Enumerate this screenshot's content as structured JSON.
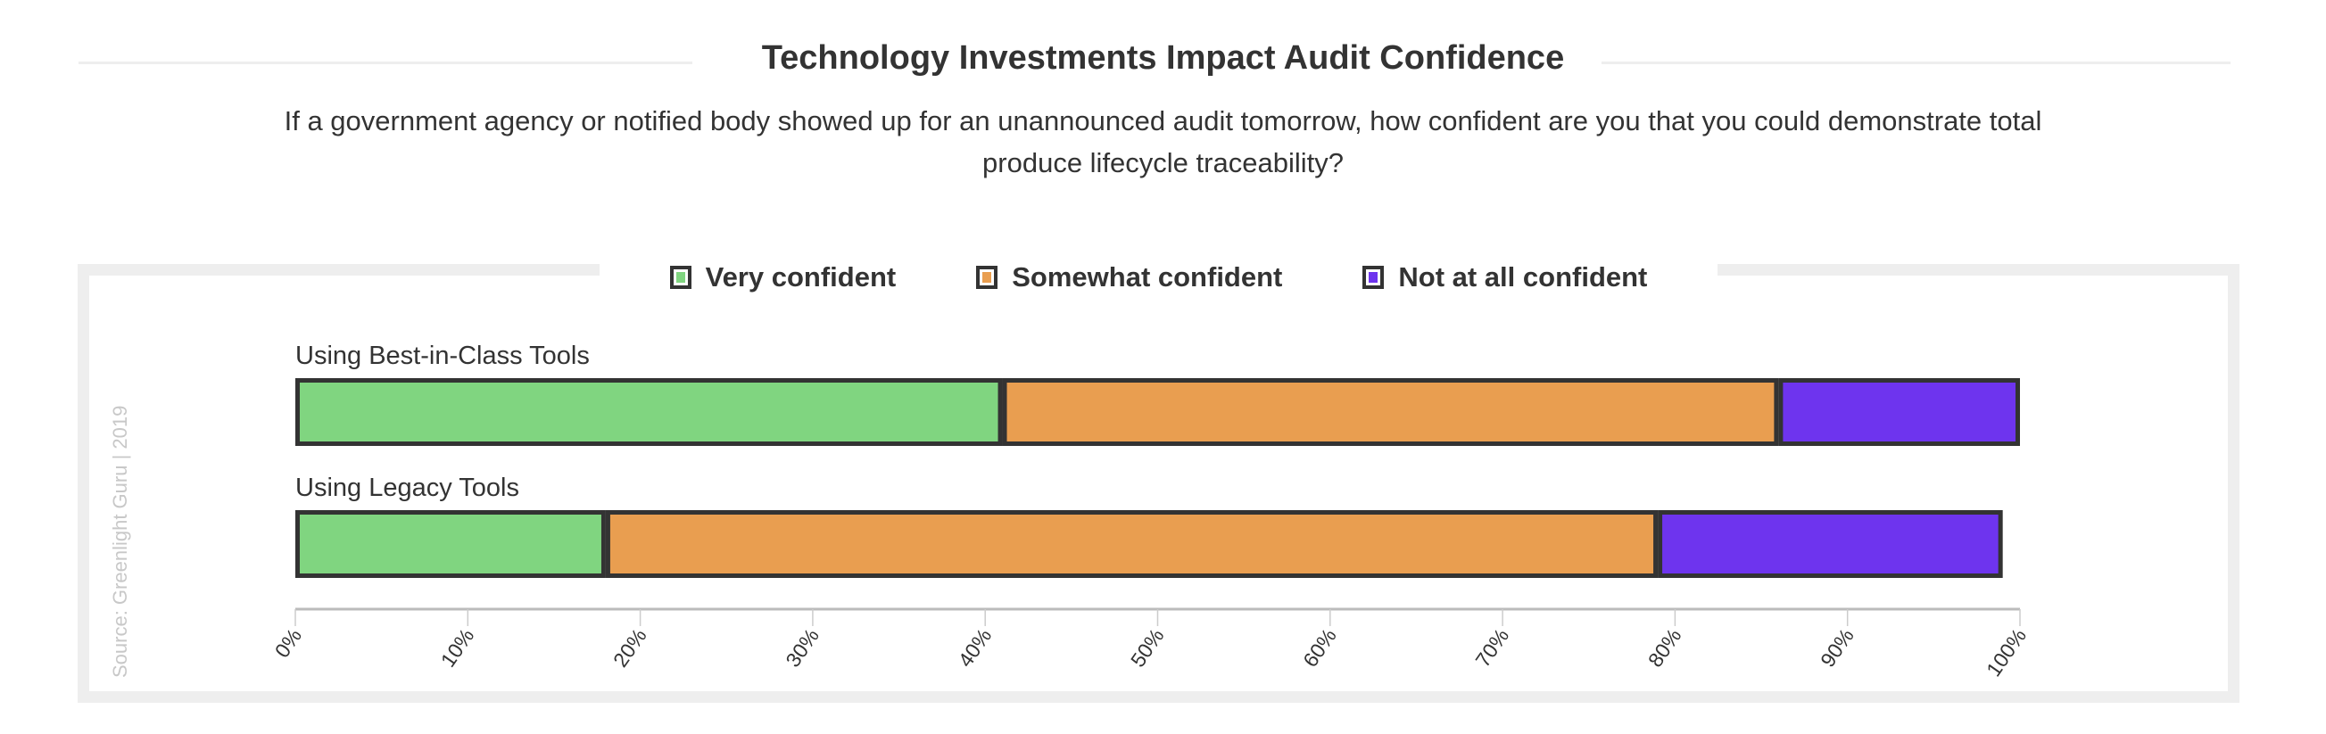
{
  "chart_data": {
    "type": "bar",
    "orientation": "horizontal",
    "stacked": true,
    "title": "Technology Investments Impact Audit Confidence",
    "subtitle": "If a government agency or notified body showed up for an unannounced audit tomorrow, how confident are you that you could demonstrate total produce lifecycle traceability?",
    "categories": [
      "Using Best-in-Class Tools",
      "Using Legacy Tools"
    ],
    "series": [
      {
        "name": "Very confident",
        "color": "#80d580",
        "values": [
          41,
          18
        ]
      },
      {
        "name": "Somewhat confident",
        "color": "#e99e50",
        "values": [
          45,
          61
        ]
      },
      {
        "name": "Not at all confident",
        "color": "#6e34ee",
        "values": [
          14,
          20
        ]
      }
    ],
    "xlim": [
      0,
      100
    ],
    "xticks": [
      "0%",
      "10%",
      "20%",
      "30%",
      "40%",
      "50%",
      "60%",
      "70%",
      "80%",
      "90%",
      "100%"
    ],
    "legend_position": "top",
    "grid": false,
    "source": "Source: Greenlight Guru | 2019"
  }
}
